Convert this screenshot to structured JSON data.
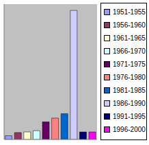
{
  "chart_data": {
    "type": "bar",
    "categories": [
      "1951-1955",
      "1956-1960",
      "1961-1965",
      "1966-1970",
      "1971-1975",
      "1976-1980",
      "1981-1985",
      "1986-1990",
      "1991-1995",
      "1996-2000"
    ],
    "values": [
      6,
      11,
      12,
      14,
      28,
      34,
      41,
      205,
      12,
      12
    ],
    "colors": [
      "#9999ff",
      "#993366",
      "#ffffcc",
      "#ccffff",
      "#660066",
      "#ff8080",
      "#0066cc",
      "#ccccff",
      "#000080",
      "#ff00ff"
    ],
    "ylim": [
      0,
      215
    ],
    "legend": "right",
    "grid": false,
    "tick_labels": false
  }
}
